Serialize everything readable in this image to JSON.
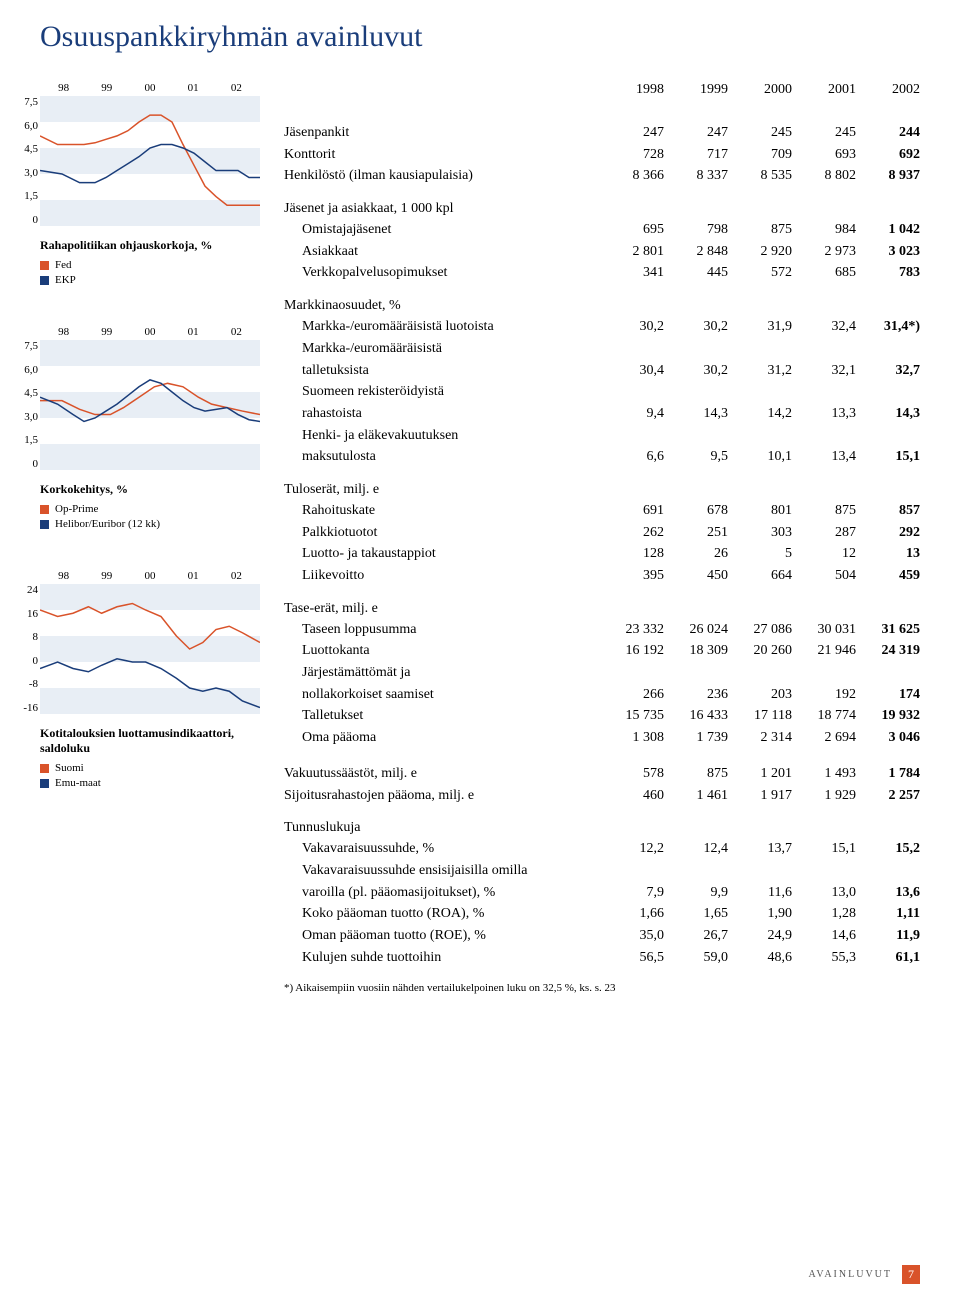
{
  "title": "Osuuspankkiryhmän avainluvut",
  "years": [
    "1998",
    "1999",
    "2000",
    "2001",
    "2002"
  ],
  "chart1": {
    "type": "line",
    "x_labels": [
      "98",
      "99",
      "00",
      "01",
      "02"
    ],
    "y_labels": [
      "7,5",
      "6,0",
      "4,5",
      "3,0",
      "1,5",
      "0"
    ],
    "stripe_light": "#ffffff",
    "stripe_dark": "#e8eef5",
    "title": "Rahapolitiikan ohjauskorkoja, %",
    "legend": [
      {
        "label": "Fed",
        "color": "#d9532a"
      },
      {
        "label": "EKP",
        "color": "#1a3d7a"
      }
    ],
    "series": [
      {
        "color": "#d9532a",
        "width": 1.5,
        "points": [
          [
            0,
            5.2
          ],
          [
            8,
            4.7
          ],
          [
            15,
            4.7
          ],
          [
            20,
            4.7
          ],
          [
            25,
            4.8
          ],
          [
            30,
            5.0
          ],
          [
            35,
            5.2
          ],
          [
            40,
            5.5
          ],
          [
            45,
            6.0
          ],
          [
            50,
            6.4
          ],
          [
            55,
            6.4
          ],
          [
            60,
            6.0
          ],
          [
            65,
            4.7
          ],
          [
            70,
            3.5
          ],
          [
            75,
            2.3
          ],
          [
            80,
            1.7
          ],
          [
            85,
            1.2
          ],
          [
            90,
            1.2
          ],
          [
            95,
            1.2
          ],
          [
            100,
            1.2
          ]
        ]
      },
      {
        "color": "#1a3d7a",
        "width": 1.5,
        "points": [
          [
            0,
            3.2
          ],
          [
            10,
            3.0
          ],
          [
            18,
            2.5
          ],
          [
            25,
            2.5
          ],
          [
            30,
            2.8
          ],
          [
            35,
            3.2
          ],
          [
            40,
            3.6
          ],
          [
            45,
            4.0
          ],
          [
            50,
            4.5
          ],
          [
            55,
            4.7
          ],
          [
            60,
            4.7
          ],
          [
            65,
            4.5
          ],
          [
            70,
            4.2
          ],
          [
            75,
            3.7
          ],
          [
            80,
            3.2
          ],
          [
            85,
            3.2
          ],
          [
            90,
            3.2
          ],
          [
            95,
            2.8
          ],
          [
            100,
            2.8
          ]
        ]
      }
    ]
  },
  "chart2": {
    "type": "line",
    "x_labels": [
      "98",
      "99",
      "00",
      "01",
      "02"
    ],
    "y_labels": [
      "7,5",
      "6,0",
      "4,5",
      "3,0",
      "1,5",
      "0"
    ],
    "stripe_light": "#ffffff",
    "stripe_dark": "#e8eef5",
    "title": "Korkokehitys, %",
    "legend": [
      {
        "label": "Op-Prime",
        "color": "#d9532a"
      },
      {
        "label": "Helibor/Euribor (12 kk)",
        "color": "#1a3d7a"
      }
    ],
    "series": [
      {
        "color": "#d9532a",
        "width": 1.5,
        "points": [
          [
            0,
            4.0
          ],
          [
            10,
            4.0
          ],
          [
            18,
            3.5
          ],
          [
            25,
            3.2
          ],
          [
            32,
            3.2
          ],
          [
            38,
            3.6
          ],
          [
            45,
            4.2
          ],
          [
            52,
            4.8
          ],
          [
            58,
            5.0
          ],
          [
            65,
            4.8
          ],
          [
            72,
            4.2
          ],
          [
            78,
            3.8
          ],
          [
            85,
            3.6
          ],
          [
            92,
            3.4
          ],
          [
            100,
            3.2
          ]
        ]
      },
      {
        "color": "#1a3d7a",
        "width": 1.5,
        "points": [
          [
            0,
            4.2
          ],
          [
            8,
            3.8
          ],
          [
            15,
            3.2
          ],
          [
            20,
            2.8
          ],
          [
            25,
            3.0
          ],
          [
            30,
            3.4
          ],
          [
            35,
            3.8
          ],
          [
            40,
            4.3
          ],
          [
            45,
            4.8
          ],
          [
            50,
            5.2
          ],
          [
            55,
            5.0
          ],
          [
            60,
            4.5
          ],
          [
            65,
            4.0
          ],
          [
            70,
            3.6
          ],
          [
            75,
            3.4
          ],
          [
            80,
            3.5
          ],
          [
            85,
            3.6
          ],
          [
            90,
            3.2
          ],
          [
            95,
            2.9
          ],
          [
            100,
            2.8
          ]
        ]
      }
    ]
  },
  "chart3": {
    "type": "line",
    "x_labels": [
      "98",
      "99",
      "00",
      "01",
      "02"
    ],
    "y_labels": [
      "24",
      "16",
      "8",
      "0",
      "-8",
      "-16"
    ],
    "y_min": -16,
    "y_max": 24,
    "stripe_light": "#ffffff",
    "stripe_dark": "#e8eef5",
    "title": "Kotitalouksien luottamusindikaattori, saldoluku",
    "legend": [
      {
        "label": "Suomi",
        "color": "#d9532a"
      },
      {
        "label": "Emu-maat",
        "color": "#1a3d7a"
      }
    ],
    "series": [
      {
        "color": "#d9532a",
        "width": 1.5,
        "points": [
          [
            0,
            16
          ],
          [
            8,
            14
          ],
          [
            15,
            15
          ],
          [
            22,
            17
          ],
          [
            28,
            15
          ],
          [
            35,
            17
          ],
          [
            42,
            18
          ],
          [
            48,
            16
          ],
          [
            55,
            14
          ],
          [
            62,
            8
          ],
          [
            68,
            4
          ],
          [
            74,
            6
          ],
          [
            80,
            10
          ],
          [
            86,
            11
          ],
          [
            92,
            9
          ],
          [
            100,
            6
          ]
        ]
      },
      {
        "color": "#1a3d7a",
        "width": 1.5,
        "points": [
          [
            0,
            -2
          ],
          [
            8,
            0
          ],
          [
            15,
            -2
          ],
          [
            22,
            -3
          ],
          [
            28,
            -1
          ],
          [
            35,
            1
          ],
          [
            42,
            0
          ],
          [
            48,
            0
          ],
          [
            55,
            -2
          ],
          [
            62,
            -5
          ],
          [
            68,
            -8
          ],
          [
            74,
            -9
          ],
          [
            80,
            -8
          ],
          [
            86,
            -9
          ],
          [
            92,
            -12
          ],
          [
            100,
            -14
          ]
        ]
      }
    ]
  },
  "sections": [
    {
      "rows": [
        {
          "lbl": "Jäsenpankit",
          "vals": [
            "247",
            "247",
            "245",
            "245",
            "244"
          ]
        },
        {
          "lbl": "Konttorit",
          "vals": [
            "728",
            "717",
            "709",
            "693",
            "692"
          ]
        },
        {
          "lbl": "Henkilöstö (ilman kausiapulaisia)",
          "vals": [
            "8 366",
            "8 337",
            "8 535",
            "8 802",
            "8 937"
          ]
        }
      ]
    },
    {
      "head": "Jäsenet ja asiakkaat, 1 000 kpl",
      "rows": [
        {
          "lbl": "Omistajajäsenet",
          "indent": true,
          "vals": [
            "695",
            "798",
            "875",
            "984",
            "1 042"
          ]
        },
        {
          "lbl": "Asiakkaat",
          "indent": true,
          "vals": [
            "2 801",
            "2 848",
            "2 920",
            "2 973",
            "3 023"
          ]
        },
        {
          "lbl": "Verkkopalvelusopimukset",
          "indent": true,
          "vals": [
            "341",
            "445",
            "572",
            "685",
            "783"
          ]
        }
      ]
    },
    {
      "head": "Markkinaosuudet, %",
      "rows": [
        {
          "lbl": "Markka-/euromääräisistä luotoista",
          "indent": true,
          "vals": [
            "30,2",
            "30,2",
            "31,9",
            "32,4",
            "31,4*)"
          ]
        },
        {
          "lbl": "Markka-/euromääräisistä",
          "indent": true,
          "vals": [
            "",
            "",
            "",
            "",
            ""
          ]
        },
        {
          "lbl": "talletuksista",
          "indent": true,
          "vals": [
            "30,4",
            "30,2",
            "31,2",
            "32,1",
            "32,7"
          ]
        },
        {
          "lbl": "Suomeen rekisteröidyistä",
          "indent": true,
          "vals": [
            "",
            "",
            "",
            "",
            ""
          ]
        },
        {
          "lbl": "rahastoista",
          "indent": true,
          "vals": [
            "9,4",
            "14,3",
            "14,2",
            "13,3",
            "14,3"
          ]
        },
        {
          "lbl": "Henki- ja eläkevakuutuksen",
          "indent": true,
          "vals": [
            "",
            "",
            "",
            "",
            ""
          ]
        },
        {
          "lbl": "maksutulosta",
          "indent": true,
          "vals": [
            "6,6",
            "9,5",
            "10,1",
            "13,4",
            "15,1"
          ]
        }
      ]
    },
    {
      "head": "Tuloserät, milj. e",
      "rows": [
        {
          "lbl": "Rahoituskate",
          "indent": true,
          "vals": [
            "691",
            "678",
            "801",
            "875",
            "857"
          ]
        },
        {
          "lbl": "Palkkiotuotot",
          "indent": true,
          "vals": [
            "262",
            "251",
            "303",
            "287",
            "292"
          ]
        },
        {
          "lbl": "Luotto- ja takaustappiot",
          "indent": true,
          "vals": [
            "128",
            "26",
            "5",
            "12",
            "13"
          ]
        },
        {
          "lbl": "Liikevoitto",
          "indent": true,
          "vals": [
            "395",
            "450",
            "664",
            "504",
            "459"
          ]
        }
      ]
    },
    {
      "head": "Tase-erät, milj. e",
      "rows": [
        {
          "lbl": "Taseen loppusumma",
          "indent": true,
          "vals": [
            "23 332",
            "26 024",
            "27 086",
            "30 031",
            "31 625"
          ]
        },
        {
          "lbl": "Luottokanta",
          "indent": true,
          "vals": [
            "16 192",
            "18 309",
            "20 260",
            "21 946",
            "24 319"
          ]
        },
        {
          "lbl": "Järjestämättömät ja",
          "indent": true,
          "vals": [
            "",
            "",
            "",
            "",
            ""
          ]
        },
        {
          "lbl": "nollakorkoiset saamiset",
          "indent": true,
          "vals": [
            "266",
            "236",
            "203",
            "192",
            "174"
          ]
        },
        {
          "lbl": "Talletukset",
          "indent": true,
          "vals": [
            "15 735",
            "16 433",
            "17 118",
            "18 774",
            "19 932"
          ]
        },
        {
          "lbl": "Oma pääoma",
          "indent": true,
          "vals": [
            "1 308",
            "1 739",
            "2 314",
            "2 694",
            "3 046"
          ]
        }
      ]
    },
    {
      "rows": [
        {
          "lbl": "Vakuutussäästöt, milj. e",
          "vals": [
            "578",
            "875",
            "1 201",
            "1 493",
            "1 784"
          ]
        },
        {
          "lbl": "Sijoitusrahastojen pääoma, milj. e",
          "vals": [
            "460",
            "1 461",
            "1 917",
            "1 929",
            "2 257"
          ]
        }
      ]
    },
    {
      "head": "Tunnuslukuja",
      "rows": [
        {
          "lbl": "Vakavaraisuussuhde, %",
          "indent": true,
          "vals": [
            "12,2",
            "12,4",
            "13,7",
            "15,1",
            "15,2"
          ]
        },
        {
          "lbl": "Vakavaraisuussuhde ensisijaisilla omilla",
          "indent": true,
          "vals": [
            "",
            "",
            "",
            "",
            ""
          ]
        },
        {
          "lbl": "varoilla (pl. pääomasijoitukset), %",
          "indent": true,
          "vals": [
            "7,9",
            "9,9",
            "11,6",
            "13,0",
            "13,6"
          ]
        },
        {
          "lbl": "Koko pääoman tuotto (ROA), %",
          "indent": true,
          "vals": [
            "1,66",
            "1,65",
            "1,90",
            "1,28",
            "1,11"
          ]
        },
        {
          "lbl": "Oman pääoman tuotto (ROE), %",
          "indent": true,
          "vals": [
            "35,0",
            "26,7",
            "24,9",
            "14,6",
            "11,9"
          ]
        },
        {
          "lbl": "Kulujen suhde tuottoihin",
          "indent": true,
          "vals": [
            "56,5",
            "59,0",
            "48,6",
            "55,3",
            "61,1"
          ]
        }
      ]
    }
  ],
  "footnote": "*) Aikaisempiin vuosiin nähden vertailukelpoinen luku on 32,5 %, ks. s. 23",
  "footer_label": "AVAINLUVUT",
  "page_num": "7"
}
